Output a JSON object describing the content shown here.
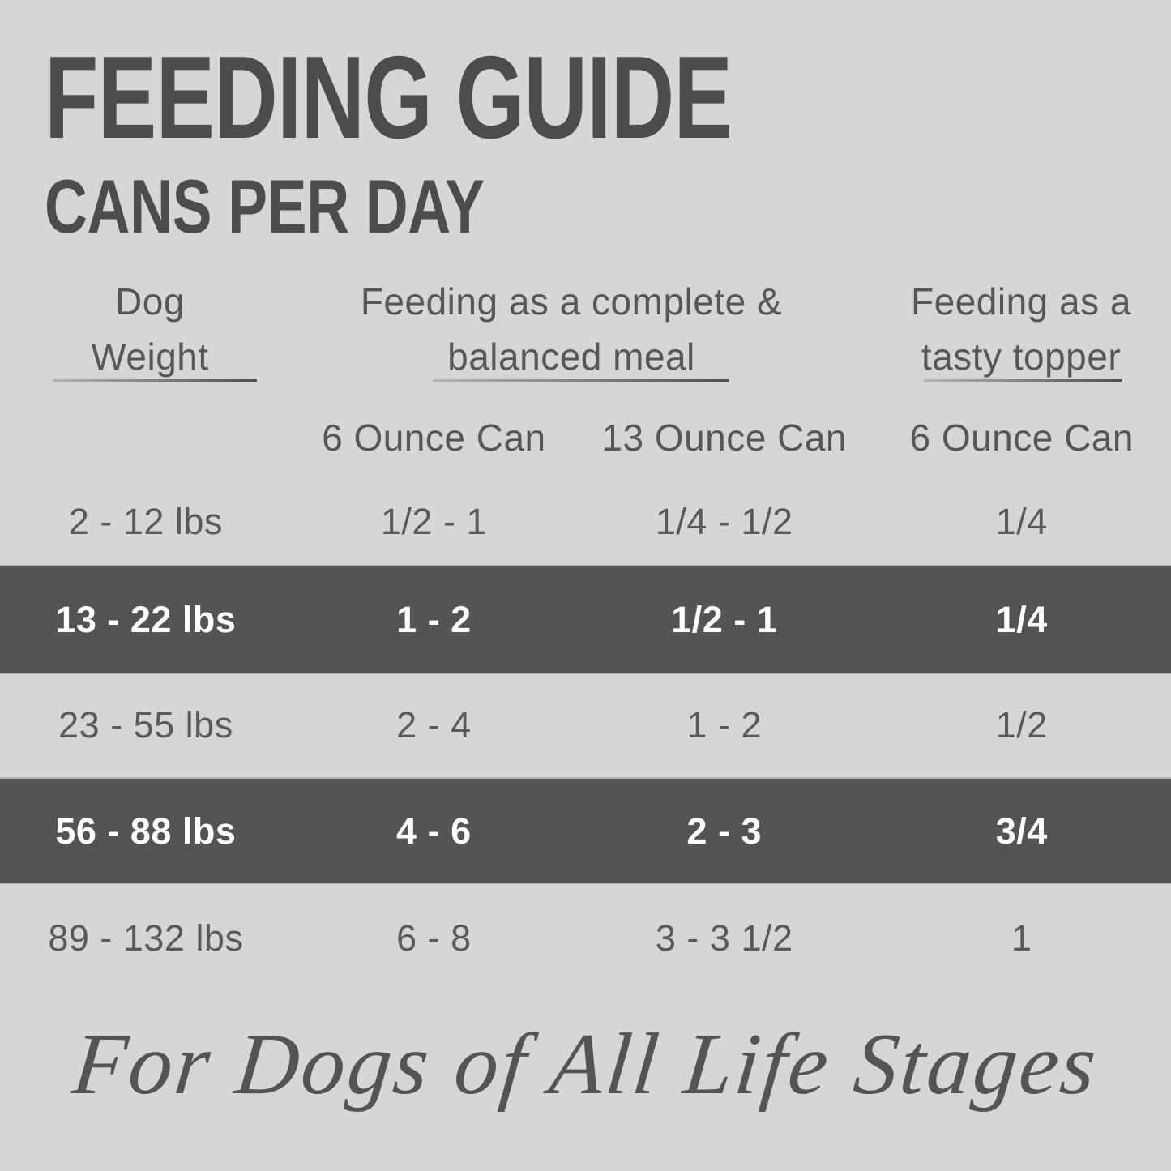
{
  "header": {
    "title": "FEEDING GUIDE",
    "subtitle": "CANS PER DAY"
  },
  "table": {
    "column_groups": [
      {
        "line1": "Dog",
        "line2": "Weight"
      },
      {
        "line1": "Feeding as a complete &",
        "line2": "balanced meal"
      },
      {
        "line1": "Feeding as a",
        "line2": "tasty topper"
      }
    ],
    "sub_headers": [
      "6 Ounce Can",
      "13 Ounce Can",
      "6 Ounce Can"
    ],
    "rows": [
      {
        "weight": "2 - 12 lbs",
        "complete_6oz": "1/2 - 1",
        "complete_13oz": "1/4 - 1/2",
        "topper_6oz": "1/4",
        "highlighted": false
      },
      {
        "weight": "13 - 22 lbs",
        "complete_6oz": "1 - 2",
        "complete_13oz": "1/2 - 1",
        "topper_6oz": "1/4",
        "highlighted": true
      },
      {
        "weight": "23 - 55 lbs",
        "complete_6oz": "2 - 4",
        "complete_13oz": "1 - 2",
        "topper_6oz": "1/2",
        "highlighted": false
      },
      {
        "weight": "56 - 88 lbs",
        "complete_6oz": "4 - 6",
        "complete_13oz": "2 - 3",
        "topper_6oz": "3/4",
        "highlighted": true
      },
      {
        "weight": "89 - 132 lbs",
        "complete_6oz": "6 - 8",
        "complete_13oz": "3 - 3 1/2",
        "topper_6oz": "1",
        "highlighted": false
      }
    ]
  },
  "footer": {
    "tagline": "For Dogs of All Life Stages"
  },
  "colors": {
    "background": "#d6d6d8",
    "band": "#545456",
    "band_text": "#ffffff",
    "title_text": "#4c4c4e",
    "header_text": "#57575a",
    "cell_text": "#5a5a5c",
    "underline": "#505052",
    "footer_text": "#545457"
  }
}
